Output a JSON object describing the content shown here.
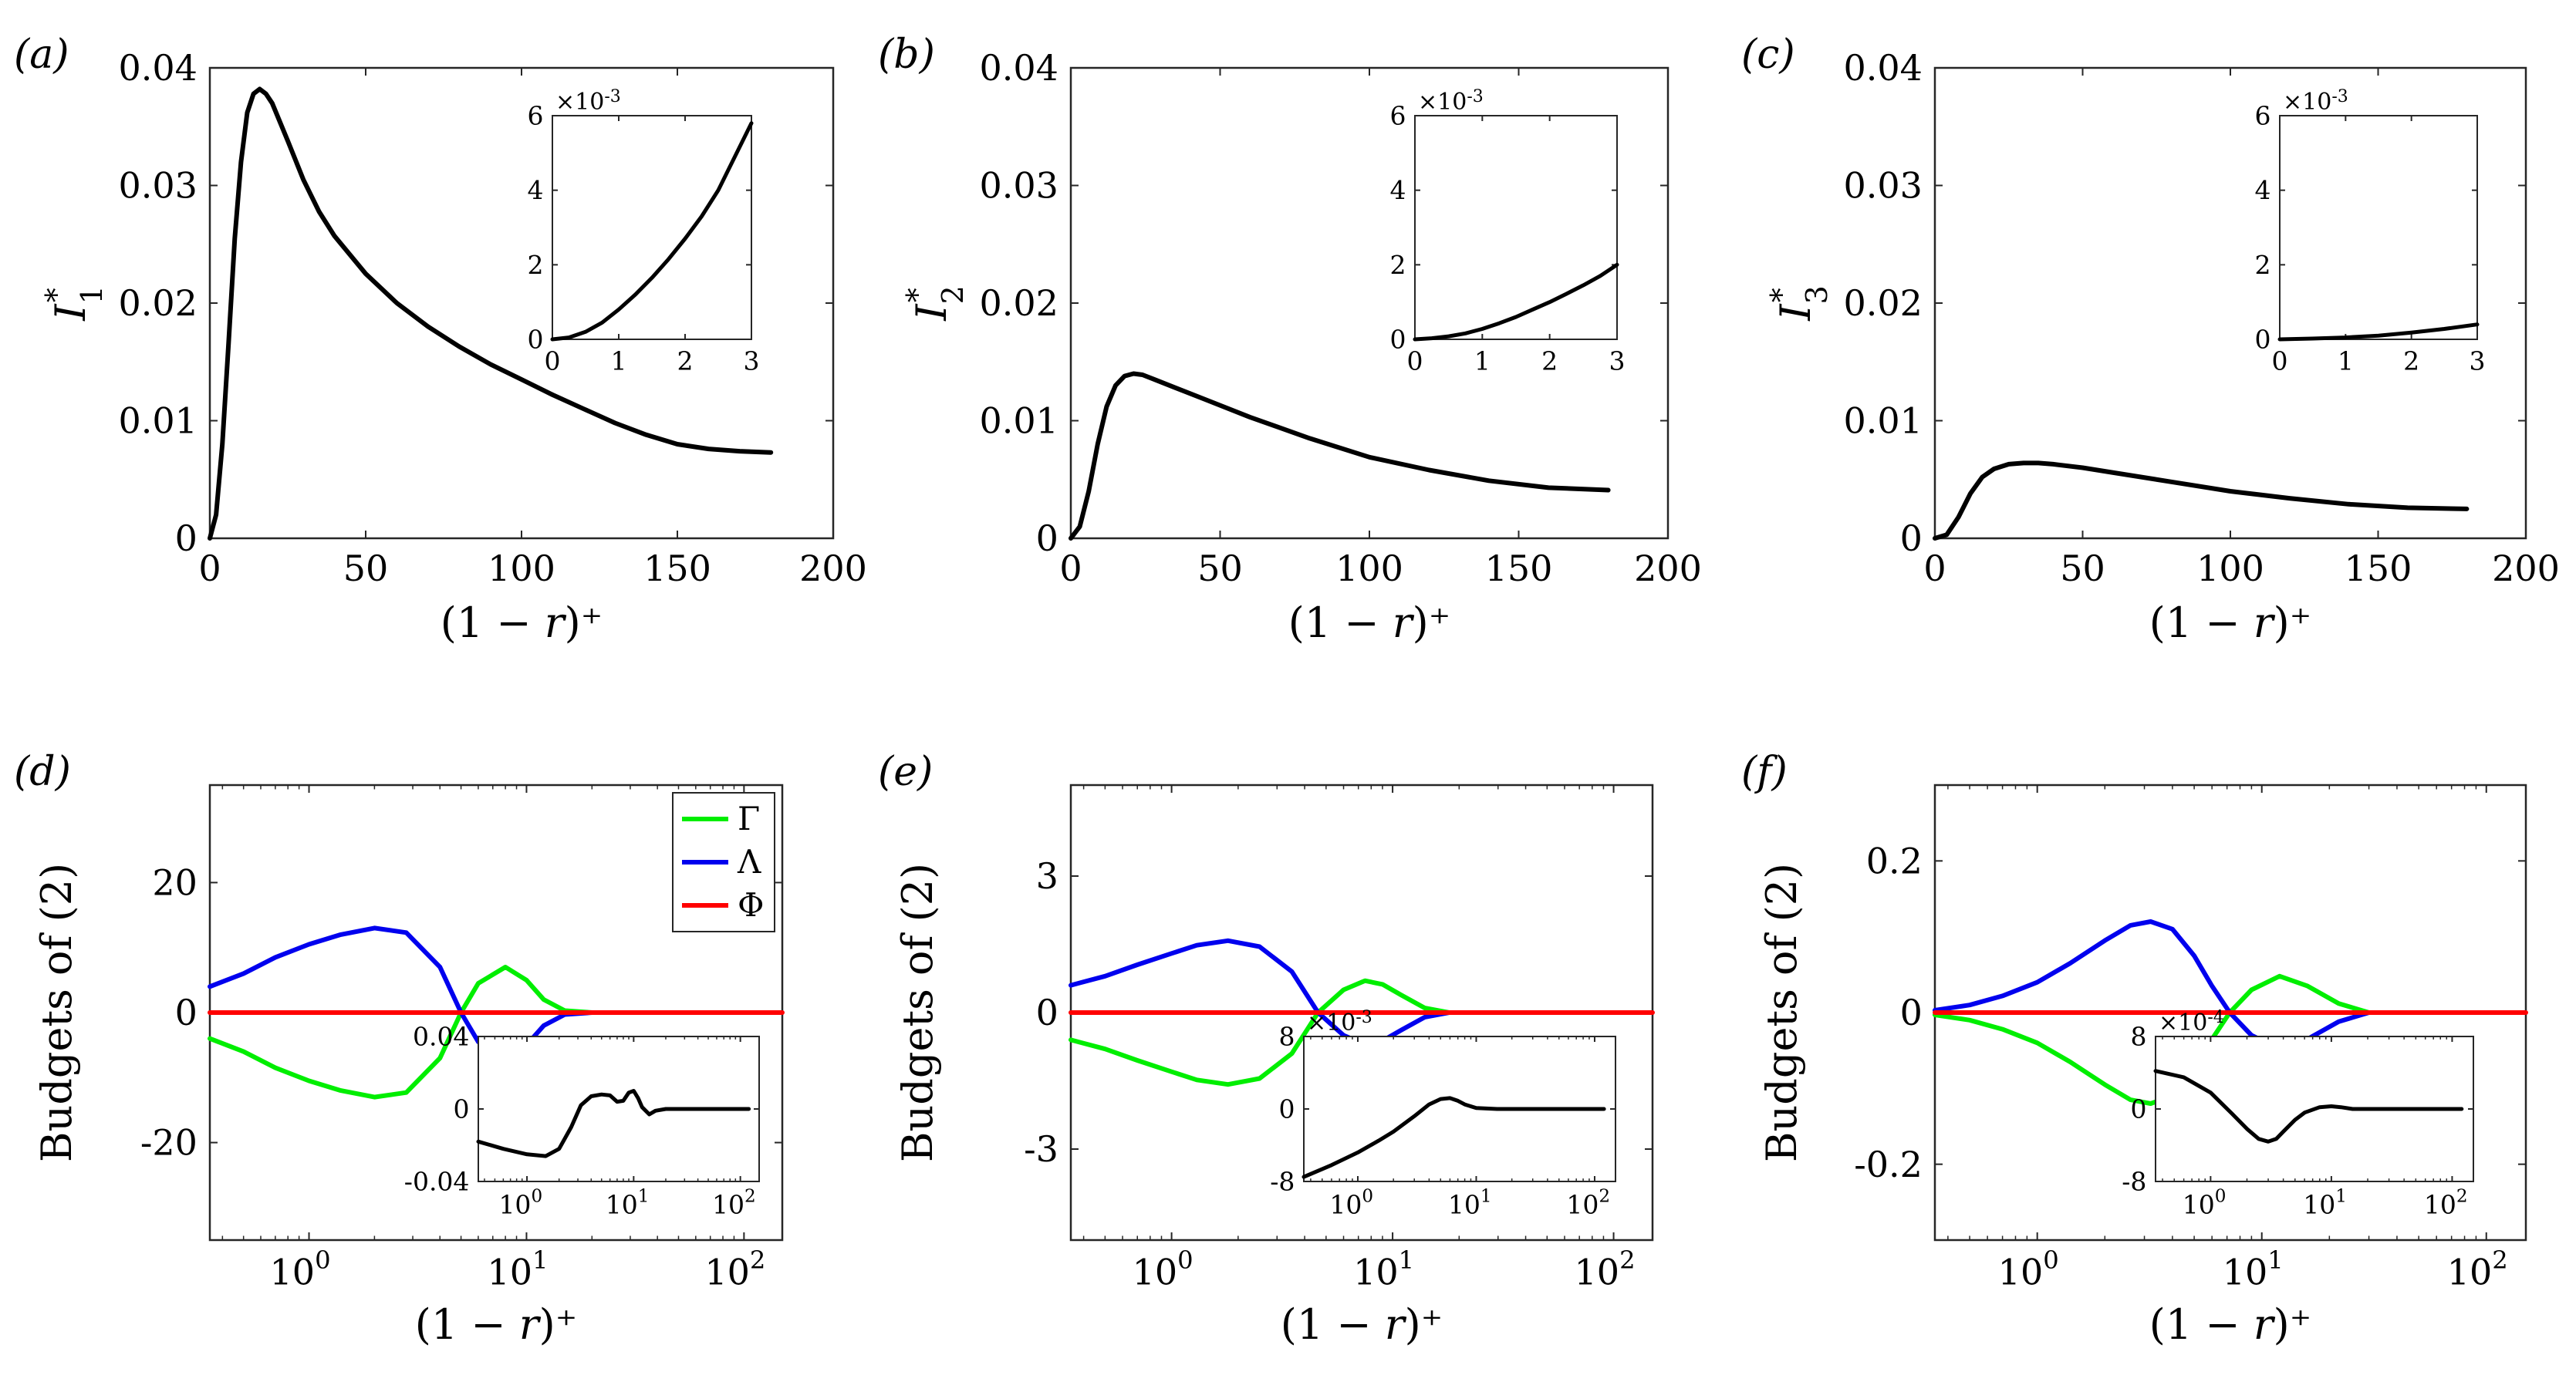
{
  "figure": {
    "x_label": "(1 − r)⁺",
    "colors": {
      "Gamma": "#00ee00",
      "Lambda": "#0000ee",
      "Phi": "#ff0000",
      "curve": "#000000",
      "axis": "#000000"
    }
  },
  "chart_data": [
    {
      "id": "a",
      "panel_label": "(a)",
      "type": "line",
      "ylabel_main": "I",
      "ylabel_sup": "*",
      "ylabel_sub": "1",
      "xlabel": "(1 − r)⁺",
      "xscale": "linear",
      "xlim": [
        0,
        200
      ],
      "ylim": [
        0,
        0.04
      ],
      "xticks": [
        0,
        50,
        100,
        150,
        200
      ],
      "xtick_labels": [
        "0",
        "50",
        "100",
        "150",
        "200"
      ],
      "yticks": [
        0,
        0.01,
        0.02,
        0.03,
        0.04
      ],
      "ytick_labels": [
        "0",
        "0.01",
        "0.02",
        "0.03",
        "0.04"
      ],
      "series": [
        {
          "name": "I1*",
          "color": "#000000",
          "x": [
            0,
            2,
            4,
            6,
            8,
            10,
            12,
            14,
            16,
            18,
            20,
            25,
            30,
            35,
            40,
            50,
            60,
            70,
            80,
            90,
            100,
            110,
            120,
            130,
            140,
            150,
            160,
            170,
            180
          ],
          "y": [
            0,
            0.002,
            0.008,
            0.0165,
            0.0255,
            0.032,
            0.0362,
            0.0378,
            0.0382,
            0.0378,
            0.037,
            0.0338,
            0.0305,
            0.0278,
            0.0257,
            0.0225,
            0.02,
            0.018,
            0.0163,
            0.0148,
            0.0135,
            0.0122,
            0.011,
            0.0098,
            0.0088,
            0.008,
            0.0076,
            0.0074,
            0.0073
          ]
        }
      ],
      "inset": {
        "xlim": [
          0,
          3
        ],
        "ylim": [
          0,
          0.006
        ],
        "xticks": [
          0,
          1,
          2,
          3
        ],
        "xtick_labels": [
          "0",
          "1",
          "2",
          "3"
        ],
        "yticks": [
          0,
          0.002,
          0.004,
          0.006
        ],
        "ytick_labels": [
          "0",
          "2",
          "4",
          "6"
        ],
        "exponent_base": "×10",
        "exponent_power": "-3",
        "series": [
          {
            "color": "#000000",
            "x": [
              0,
              0.25,
              0.5,
              0.75,
              1.0,
              1.25,
              1.5,
              1.75,
              2.0,
              2.25,
              2.5,
              2.75,
              3.0
            ],
            "y": [
              0,
              5e-05,
              0.0002,
              0.00045,
              0.0008,
              0.0012,
              0.00165,
              0.00215,
              0.0027,
              0.0033,
              0.004,
              0.0049,
              0.0058
            ]
          }
        ]
      }
    },
    {
      "id": "b",
      "panel_label": "(b)",
      "type": "line",
      "ylabel_main": "I",
      "ylabel_sup": "*",
      "ylabel_sub": "2",
      "xlabel": "(1 − r)⁺",
      "xscale": "linear",
      "xlim": [
        0,
        200
      ],
      "ylim": [
        0,
        0.04
      ],
      "xticks": [
        0,
        50,
        100,
        150,
        200
      ],
      "xtick_labels": [
        "0",
        "50",
        "100",
        "150",
        "200"
      ],
      "yticks": [
        0,
        0.01,
        0.02,
        0.03,
        0.04
      ],
      "ytick_labels": [
        "0",
        "0.01",
        "0.02",
        "0.03",
        "0.04"
      ],
      "series": [
        {
          "name": "I2*",
          "color": "#000000",
          "x": [
            0,
            3,
            6,
            9,
            12,
            15,
            18,
            21,
            24,
            28,
            35,
            45,
            60,
            80,
            100,
            120,
            140,
            160,
            180
          ],
          "y": [
            0,
            0.001,
            0.004,
            0.008,
            0.0112,
            0.013,
            0.0138,
            0.014,
            0.0139,
            0.0135,
            0.0128,
            0.0118,
            0.0103,
            0.0085,
            0.0069,
            0.0058,
            0.0049,
            0.0043,
            0.0041
          ]
        }
      ],
      "inset": {
        "xlim": [
          0,
          3
        ],
        "ylim": [
          0,
          0.006
        ],
        "xticks": [
          0,
          1,
          2,
          3
        ],
        "xtick_labels": [
          "0",
          "1",
          "2",
          "3"
        ],
        "yticks": [
          0,
          0.002,
          0.004,
          0.006
        ],
        "ytick_labels": [
          "0",
          "2",
          "4",
          "6"
        ],
        "exponent_base": "×10",
        "exponent_power": "-3",
        "series": [
          {
            "color": "#000000",
            "x": [
              0,
              0.25,
              0.5,
              0.75,
              1.0,
              1.25,
              1.5,
              1.75,
              2.0,
              2.25,
              2.5,
              2.75,
              3.0
            ],
            "y": [
              0,
              3e-05,
              8e-05,
              0.00016,
              0.00028,
              0.00043,
              0.0006,
              0.0008,
              0.001,
              0.00122,
              0.00145,
              0.0017,
              0.002
            ]
          }
        ]
      }
    },
    {
      "id": "c",
      "panel_label": "(c)",
      "type": "line",
      "ylabel_main": "I",
      "ylabel_sup": "*",
      "ylabel_sub": "3",
      "xlabel": "(1 − r)⁺",
      "xscale": "linear",
      "xlim": [
        0,
        200
      ],
      "ylim": [
        0,
        0.04
      ],
      "xticks": [
        0,
        50,
        100,
        150,
        200
      ],
      "xtick_labels": [
        "0",
        "50",
        "100",
        "150",
        "200"
      ],
      "yticks": [
        0,
        0.01,
        0.02,
        0.03,
        0.04
      ],
      "ytick_labels": [
        "0",
        "0.01",
        "0.02",
        "0.03",
        "0.04"
      ],
      "series": [
        {
          "name": "I3*",
          "color": "#000000",
          "x": [
            0,
            4,
            8,
            12,
            16,
            20,
            25,
            30,
            35,
            40,
            50,
            60,
            80,
            100,
            120,
            140,
            160,
            180
          ],
          "y": [
            0,
            0.0003,
            0.0018,
            0.0038,
            0.0052,
            0.0059,
            0.0063,
            0.0064,
            0.0064,
            0.0063,
            0.006,
            0.0056,
            0.0048,
            0.004,
            0.0034,
            0.0029,
            0.0026,
            0.0025
          ]
        }
      ],
      "inset": {
        "xlim": [
          0,
          3
        ],
        "ylim": [
          0,
          0.006
        ],
        "xticks": [
          0,
          1,
          2,
          3
        ],
        "xtick_labels": [
          "0",
          "1",
          "2",
          "3"
        ],
        "yticks": [
          0,
          0.002,
          0.004,
          0.006
        ],
        "ytick_labels": [
          "0",
          "2",
          "4",
          "6"
        ],
        "exponent_base": "×10",
        "exponent_power": "-3",
        "series": [
          {
            "color": "#000000",
            "x": [
              0,
              0.5,
              1.0,
              1.5,
              2.0,
              2.5,
              3.0
            ],
            "y": [
              0,
              2e-05,
              5e-05,
              0.0001,
              0.00018,
              0.00028,
              0.0004
            ]
          }
        ]
      }
    },
    {
      "id": "d",
      "panel_label": "(d)",
      "type": "line",
      "ylabel": "Budgets of (2)",
      "xlabel": "(1 − r)⁺",
      "xscale": "log",
      "xlim": [
        0.35,
        150
      ],
      "ylim": [
        -35,
        35
      ],
      "xticks": [
        1,
        10,
        100
      ],
      "xtick_base": "10",
      "xtick_exps": [
        "0",
        "1",
        "2"
      ],
      "yticks": [
        -20,
        0,
        20
      ],
      "ytick_labels": [
        "-20",
        "0",
        "20"
      ],
      "legend": {
        "position": "top-right",
        "entries": [
          "Γ",
          "Λ",
          "Φ"
        ],
        "colors": [
          "#00ee00",
          "#0000ee",
          "#ff0000"
        ]
      },
      "series": [
        {
          "name": "Γ",
          "color": "#00ee00",
          "x": [
            0.35,
            0.5,
            0.7,
            1.0,
            1.4,
            2.0,
            2.8,
            4.0,
            5.0,
            6.0,
            8.0,
            10.0,
            12.0,
            15.0,
            20.0,
            25.0
          ],
          "y": [
            -4,
            -6,
            -8.5,
            -10.5,
            -12,
            -13,
            -12.3,
            -7,
            0,
            4.5,
            7,
            5,
            2,
            0.3,
            0,
            0
          ]
        },
        {
          "name": "Λ",
          "color": "#0000ee",
          "x": [
            0.35,
            0.5,
            0.7,
            1.0,
            1.4,
            2.0,
            2.8,
            4.0,
            5.0,
            6.0,
            8.0,
            10.0,
            12.0,
            15.0,
            20.0,
            25.0
          ],
          "y": [
            4,
            6,
            8.5,
            10.5,
            12,
            13,
            12.3,
            7,
            0,
            -4.5,
            -7,
            -5,
            -2,
            -0.3,
            0,
            0
          ]
        },
        {
          "name": "Φ",
          "color": "#ff0000",
          "x": [
            0.35,
            150
          ],
          "y": [
            0,
            0
          ]
        }
      ],
      "inset": {
        "xscale": "log",
        "xlim": [
          0.35,
          150
        ],
        "ylim": [
          -0.04,
          0.04
        ],
        "xticks": [
          1,
          10,
          100
        ],
        "xtick_base": "10",
        "xtick_exps": [
          "0",
          "1",
          "2"
        ],
        "yticks": [
          -0.04,
          0,
          0.04
        ],
        "ytick_labels": [
          "-0.04",
          "0",
          "0.04"
        ],
        "series": [
          {
            "color": "#000000",
            "x": [
              0.35,
              0.6,
              1.0,
              1.5,
              2.0,
              2.6,
              3.2,
              4.0,
              5.0,
              6.0,
              7.0,
              8.0,
              9.0,
              10.0,
              11.0,
              12.0,
              14.0,
              16.0,
              20.0,
              30.0,
              50.0,
              100.0,
              120.0
            ],
            "y": [
              -0.018,
              -0.022,
              -0.025,
              -0.026,
              -0.022,
              -0.01,
              0.002,
              0.007,
              0.008,
              0.0075,
              0.004,
              0.0045,
              0.009,
              0.01,
              0.006,
              0.001,
              -0.003,
              -0.001,
              0.0,
              0.0,
              0.0,
              0.0,
              0.0
            ]
          }
        ]
      }
    },
    {
      "id": "e",
      "panel_label": "(e)",
      "type": "line",
      "ylabel": "Budgets of (2)",
      "xlabel": "(1 − r)⁺",
      "xscale": "log",
      "xlim": [
        0.35,
        150
      ],
      "ylim": [
        -5,
        5
      ],
      "xticks": [
        1,
        10,
        100
      ],
      "xtick_base": "10",
      "xtick_exps": [
        "0",
        "1",
        "2"
      ],
      "yticks": [
        -3,
        0,
        3
      ],
      "ytick_labels": [
        "-3",
        "0",
        "3"
      ],
      "series": [
        {
          "name": "Γ",
          "color": "#00ee00",
          "x": [
            0.35,
            0.5,
            0.7,
            1.0,
            1.3,
            1.8,
            2.5,
            3.5,
            4.6,
            6.0,
            7.5,
            9.0,
            11.0,
            14.0,
            18.0,
            25.0
          ],
          "y": [
            -0.6,
            -0.8,
            -1.05,
            -1.3,
            -1.48,
            -1.58,
            -1.45,
            -0.9,
            0.0,
            0.5,
            0.7,
            0.62,
            0.38,
            0.1,
            0.0,
            0.0
          ]
        },
        {
          "name": "Λ",
          "color": "#0000ee",
          "x": [
            0.35,
            0.5,
            0.7,
            1.0,
            1.3,
            1.8,
            2.5,
            3.5,
            4.6,
            6.0,
            7.5,
            9.0,
            11.0,
            14.0,
            18.0,
            25.0
          ],
          "y": [
            0.6,
            0.8,
            1.05,
            1.3,
            1.48,
            1.58,
            1.45,
            0.9,
            0.0,
            -0.5,
            -0.7,
            -0.62,
            -0.38,
            -0.1,
            0.0,
            0.0
          ]
        },
        {
          "name": "Φ",
          "color": "#ff0000",
          "x": [
            0.35,
            150
          ],
          "y": [
            0,
            0
          ]
        }
      ],
      "inset": {
        "xscale": "log",
        "xlim": [
          0.35,
          150
        ],
        "ylim": [
          -0.008,
          0.008
        ],
        "xticks": [
          1,
          10,
          100
        ],
        "xtick_base": "10",
        "xtick_exps": [
          "0",
          "1",
          "2"
        ],
        "yticks": [
          -0.008,
          0,
          0.008
        ],
        "ytick_labels": [
          "-8",
          "0",
          "8"
        ],
        "exponent_base": "×10",
        "exponent_power": "-3",
        "series": [
          {
            "color": "#000000",
            "x": [
              0.35,
              0.6,
              1.0,
              1.5,
              2.0,
              3.0,
              4.0,
              5.0,
              6.0,
              7.0,
              8.0,
              10.0,
              15.0,
              30.0,
              100.0,
              120.0
            ],
            "y": [
              -0.0075,
              -0.0062,
              -0.0048,
              -0.0035,
              -0.0025,
              -0.0008,
              0.0005,
              0.0011,
              0.0012,
              0.0009,
              0.0005,
              0.0001,
              0.0,
              0.0,
              0.0,
              0.0
            ]
          }
        ]
      }
    },
    {
      "id": "f",
      "panel_label": "(f)",
      "type": "line",
      "ylabel": "Budgets of (2)",
      "xlabel": "(1 − r)⁺",
      "xscale": "log",
      "xlim": [
        0.35,
        150
      ],
      "ylim": [
        -0.3,
        0.3
      ],
      "xticks": [
        1,
        10,
        100
      ],
      "xtick_base": "10",
      "xtick_exps": [
        "0",
        "1",
        "2"
      ],
      "yticks": [
        -0.2,
        0,
        0.2
      ],
      "ytick_labels": [
        "-0.2",
        "0",
        "0.2"
      ],
      "series": [
        {
          "name": "Γ",
          "color": "#00ee00",
          "x": [
            0.35,
            0.5,
            0.7,
            1.0,
            1.4,
            2.0,
            2.6,
            3.2,
            4.0,
            5.0,
            6.0,
            7.2,
            9.0,
            12.0,
            16.0,
            22.0,
            30.0,
            45.0
          ],
          "y": [
            -0.003,
            -0.01,
            -0.022,
            -0.04,
            -0.065,
            -0.095,
            -0.115,
            -0.12,
            -0.11,
            -0.075,
            -0.035,
            0.0,
            0.03,
            0.048,
            0.035,
            0.012,
            0.0,
            0.0
          ]
        },
        {
          "name": "Λ",
          "color": "#0000ee",
          "x": [
            0.35,
            0.5,
            0.7,
            1.0,
            1.4,
            2.0,
            2.6,
            3.2,
            4.0,
            5.0,
            6.0,
            7.2,
            9.0,
            12.0,
            16.0,
            22.0,
            30.0,
            45.0
          ],
          "y": [
            0.003,
            0.01,
            0.022,
            0.04,
            0.065,
            0.095,
            0.115,
            0.12,
            0.11,
            0.075,
            0.035,
            0.0,
            -0.03,
            -0.048,
            -0.035,
            -0.012,
            0.0,
            0.0
          ]
        },
        {
          "name": "Φ",
          "color": "#ff0000",
          "x": [
            0.35,
            150
          ],
          "y": [
            0,
            0
          ]
        }
      ],
      "inset": {
        "xscale": "log",
        "xlim": [
          0.35,
          150
        ],
        "ylim": [
          -0.0008,
          0.0008
        ],
        "xticks": [
          1,
          10,
          100
        ],
        "xtick_base": "10",
        "xtick_exps": [
          "0",
          "1",
          "2"
        ],
        "yticks": [
          -0.0008,
          0,
          0.0008
        ],
        "ytick_labels": [
          "-8",
          "0",
          "8"
        ],
        "exponent_base": "×10",
        "exponent_power": "-4",
        "series": [
          {
            "color": "#000000",
            "x": [
              0.35,
              0.6,
              1.0,
              1.5,
              2.0,
              2.5,
              3.0,
              3.5,
              4.0,
              5.0,
              6.0,
              8.0,
              10.0,
              12.0,
              15.0,
              20.0,
              40.0,
              120.0
            ],
            "y": [
              0.00042,
              0.00035,
              0.00018,
              -5e-05,
              -0.00022,
              -0.00033,
              -0.00036,
              -0.00033,
              -0.00025,
              -0.00012,
              -4e-05,
              2e-05,
              3e-05,
              2e-05,
              0.0,
              0.0,
              0.0,
              0.0
            ]
          }
        ]
      }
    }
  ]
}
